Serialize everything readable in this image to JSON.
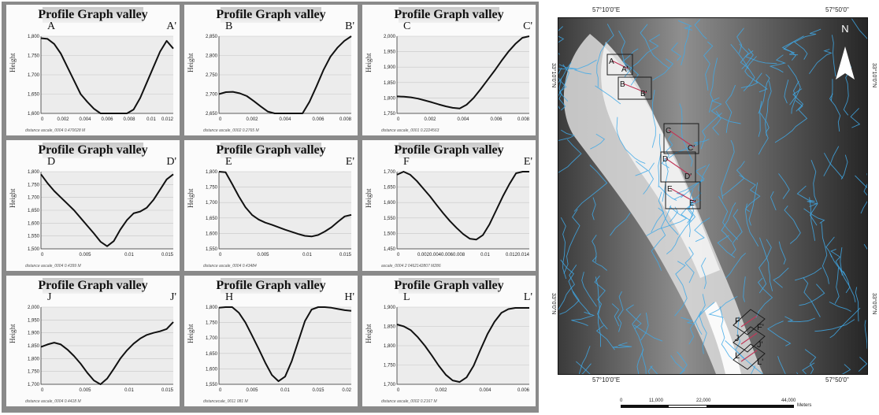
{
  "profiles": [
    {
      "title": "Profile Graph valley",
      "start": "A",
      "end": "A'",
      "ylabel": "Height",
      "footer": "distance ascale_0004 0.470028 M",
      "yticks": [
        "1,800",
        "1,750",
        "1,700",
        "1,650",
        "1,600"
      ],
      "xticks": [
        "0",
        "0.002",
        "0.004",
        "0.006",
        "0.008",
        "0.01",
        "0.012"
      ],
      "profile": [
        1795,
        1793,
        1780,
        1755,
        1720,
        1685,
        1650,
        1630,
        1612,
        1597,
        1592,
        1587,
        1583,
        1590,
        1610,
        1640,
        1680,
        1720,
        1760,
        1788,
        1768
      ]
    },
    {
      "title": "Profile Graph valley",
      "start": "B",
      "end": "B'",
      "ylabel": "Height",
      "footer": "distance ascale_0002 0.2765 M",
      "yticks": [
        "2,850",
        "2,800",
        "2,750",
        "2,700",
        "2,650"
      ],
      "xticks": [
        "0",
        "0.002",
        "0.004",
        "0.006",
        "0.008"
      ],
      "profile": [
        2700,
        2705,
        2706,
        2702,
        2695,
        2682,
        2668,
        2655,
        2642,
        2632,
        2627,
        2631,
        2648,
        2680,
        2720,
        2762,
        2797,
        2820,
        2838,
        2852
      ]
    },
    {
      "title": "Profile Graph valley",
      "start": "C",
      "end": "C'",
      "ylabel": "Height",
      "footer": "distance ascale_0001 0.2224563",
      "yticks": [
        "2,000",
        "1,950",
        "1,900",
        "1,850",
        "1,800",
        "1,750"
      ],
      "xticks": [
        "0",
        "0.002",
        "0.004",
        "0.006",
        "0.008"
      ],
      "profile": [
        1805,
        1804,
        1802,
        1798,
        1792,
        1786,
        1779,
        1773,
        1768,
        1766,
        1778,
        1800,
        1828,
        1858,
        1888,
        1920,
        1950,
        1975,
        1995,
        2008
      ]
    },
    {
      "title": "Profile Graph valley",
      "start": "D",
      "end": "D'",
      "ylabel": "Height",
      "footer": "distance ascale_0004 0.4399 M",
      "yticks": [
        "1,800",
        "1,750",
        "1,700",
        "1,650",
        "1,600",
        "1,550",
        "1,500"
      ],
      "xticks": [
        "0",
        "0.005",
        "0.01",
        "0.015"
      ],
      "profile": [
        1790,
        1755,
        1725,
        1700,
        1675,
        1650,
        1620,
        1590,
        1560,
        1528,
        1510,
        1530,
        1575,
        1612,
        1638,
        1645,
        1660,
        1690,
        1730,
        1770,
        1790
      ]
    },
    {
      "title": "Profile Graph valley",
      "start": "E",
      "end": "E'",
      "ylabel": "Height",
      "footer": "distance ascale_0004 0.43484",
      "yticks": [
        "1,800",
        "1,750",
        "1,700",
        "1,650",
        "1,600",
        "1,550"
      ],
      "xticks": [
        "0",
        "0.005",
        "0.01",
        "0.015"
      ],
      "profile": [
        1810,
        1798,
        1760,
        1720,
        1685,
        1660,
        1645,
        1635,
        1628,
        1620,
        1612,
        1605,
        1598,
        1592,
        1590,
        1595,
        1606,
        1620,
        1638,
        1655,
        1660
      ]
    },
    {
      "title": "Profile Graph valley",
      "start": "F",
      "end": "E'",
      "ylabel": "Height",
      "footer": "ascale_0004 2 0462142807 M286",
      "yticks": [
        "1,700",
        "1,650",
        "1,600",
        "1,550",
        "1,500",
        "1,450"
      ],
      "xticks": [
        "0",
        "0.0020.0040.0060.008",
        "0.01",
        "0.0120.014"
      ],
      "profile": [
        1690,
        1700,
        1690,
        1670,
        1645,
        1620,
        1592,
        1565,
        1540,
        1518,
        1498,
        1483,
        1480,
        1495,
        1530,
        1575,
        1620,
        1660,
        1695,
        1715,
        1722
      ]
    },
    {
      "title": "Profile Graph valley",
      "start": "J",
      "end": "J'",
      "ylabel": "Height",
      "footer": "distance ascale_0004 0.4418 M",
      "yticks": [
        "2,000",
        "1,950",
        "1,900",
        "1,850",
        "1,800",
        "1,750",
        "1,700"
      ],
      "xticks": [
        "0",
        "0.005",
        "0.01",
        "0.015"
      ],
      "profile": [
        1845,
        1855,
        1862,
        1855,
        1835,
        1810,
        1780,
        1745,
        1715,
        1700,
        1722,
        1760,
        1800,
        1832,
        1858,
        1878,
        1892,
        1900,
        1906,
        1915,
        1942
      ]
    },
    {
      "title": "Profile Graph valley",
      "start": "H",
      "end": "H'",
      "ylabel": "Height",
      "footer": "distancecale_0011 081 M",
      "yticks": [
        "1,800",
        "1,750",
        "1,700",
        "1,650",
        "1,600",
        "1,550"
      ],
      "xticks": [
        "0",
        "0.005",
        "0.01",
        "0.015",
        "0.02"
      ],
      "profile": [
        1798,
        1802,
        1800,
        1782,
        1750,
        1708,
        1665,
        1620,
        1580,
        1560,
        1575,
        1625,
        1690,
        1755,
        1792,
        1804,
        1802,
        1798,
        1794,
        1790,
        1788
      ]
    },
    {
      "title": "Profile Graph valley",
      "start": "L",
      "end": "L'",
      "ylabel": "Height",
      "footer": "distance ascale_0002 0.2167 M",
      "yticks": [
        "1,900",
        "1,850",
        "1,800",
        "1,750",
        "1,700"
      ],
      "xticks": [
        "0",
        "0.002",
        "0.004",
        "0.006"
      ],
      "profile": [
        1855,
        1850,
        1840,
        1822,
        1800,
        1775,
        1748,
        1725,
        1710,
        1706,
        1718,
        1748,
        1790,
        1830,
        1862,
        1885,
        1895,
        1898,
        1898,
        1898
      ]
    }
  ],
  "map": {
    "north_label": "N",
    "top_left_coord": "57°10'0\"E",
    "top_right_coord": "57°50'0\"",
    "bottom_left_coord": "57°10'0\"E",
    "bottom_right_coord": "57°50'0\"",
    "left_top_coord": "33°10'0\"N",
    "left_bottom_coord": "33°0'0\"N",
    "right_top_coord": "33°10'0\"N",
    "right_bottom_coord": "33°0'0\"N",
    "box_labels": [
      "A",
      "A'",
      "B",
      "B'",
      "C",
      "C'",
      "D",
      "D'",
      "E",
      "E'",
      "F",
      "F'",
      "J",
      "J'",
      "L",
      "L'"
    ],
    "scale_ticks": [
      "0",
      "11,000",
      "22,000",
      "44,000"
    ],
    "scale_unit": "Meters",
    "stream_color": "#3fa9e8",
    "box_color": "#1a1a1a",
    "profile_line_color": "#c0395a"
  }
}
